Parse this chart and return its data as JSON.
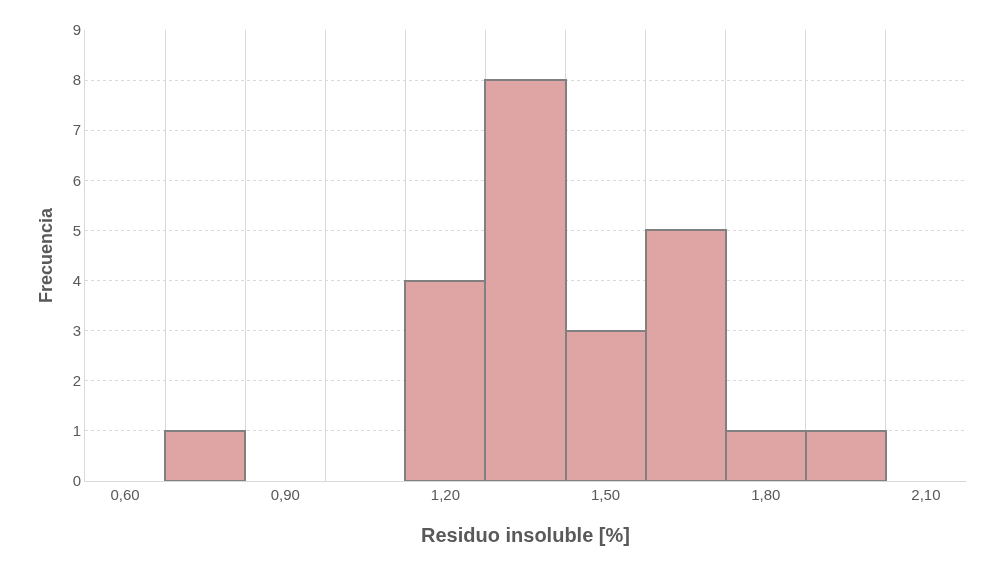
{
  "chart_data": {
    "type": "histogram",
    "xlabel": "Residuo insoluble [%]",
    "ylabel": "Frecuencia",
    "bins": [
      0.675,
      0.825,
      0.975,
      1.125,
      1.275,
      1.425,
      1.575,
      1.725,
      1.875,
      2.025
    ],
    "values": [
      1,
      0,
      0,
      4,
      8,
      3,
      5,
      1,
      1
    ],
    "color": "#dea5a4",
    "xlim": [
      0.525,
      2.175
    ],
    "xticks": [
      {
        "value": 0.6,
        "label": "0,60"
      },
      {
        "value": 0.9,
        "label": "0,90"
      },
      {
        "value": 1.2,
        "label": "1,20"
      },
      {
        "value": 1.5,
        "label": "1,50"
      },
      {
        "value": 1.8,
        "label": "1,80"
      },
      {
        "value": 2.1,
        "label": "2,10"
      }
    ],
    "ylim": [
      0,
      9
    ],
    "yticks": [
      0,
      1,
      2,
      3,
      4,
      5,
      6,
      7,
      8,
      9
    ],
    "grid": true
  }
}
